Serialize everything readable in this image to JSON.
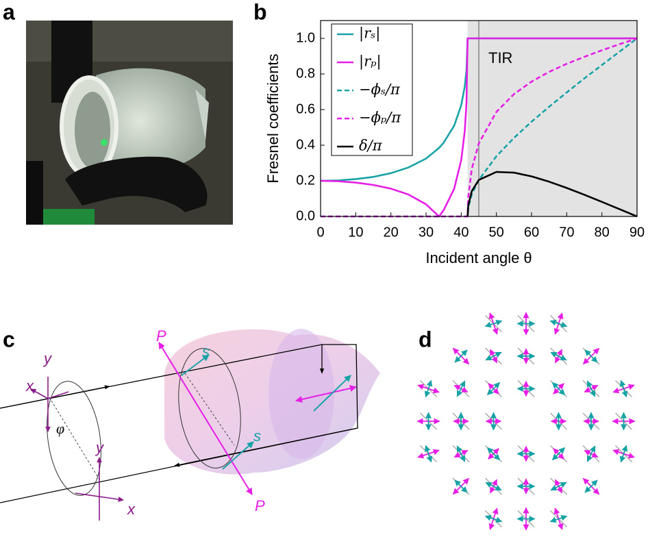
{
  "panel_labels": [
    "a",
    "b",
    "c",
    "d"
  ],
  "chart_data": {
    "type": "line",
    "x_label": "Incident angle θ",
    "y_label": "Fresnel coefficients",
    "annotation": "TIR",
    "shaded_xrange": [
      41.81,
      90
    ],
    "vline": 45,
    "xlim": [
      0,
      90
    ],
    "ylim": [
      0,
      1.1
    ],
    "xticks": [
      0,
      10,
      20,
      30,
      40,
      50,
      60,
      70,
      80,
      90
    ],
    "yticks": [
      {
        "value": 0,
        "label": "0.0"
      },
      0.2,
      0.4,
      0.6,
      0.8,
      {
        "value": 1,
        "label": "1.0"
      }
    ],
    "legend": "upper left",
    "x": [
      0,
      5,
      10,
      15,
      20,
      25,
      30,
      33.7,
      35,
      38,
      40,
      41,
      41.5,
      41.81,
      42,
      43,
      45,
      50,
      55,
      60,
      65,
      70,
      75,
      80,
      85,
      90
    ],
    "series": [
      {
        "name": "|rₛ|",
        "color": "#17a3a6",
        "dashed": false,
        "values": [
          0.2,
          0.202,
          0.21,
          0.222,
          0.243,
          0.275,
          0.325,
          0.385,
          0.414,
          0.51,
          0.625,
          0.729,
          0.821,
          1,
          1,
          1,
          1,
          1,
          1,
          1,
          1,
          1,
          1,
          1,
          1,
          1
        ]
      },
      {
        "name": "|rₚ|",
        "color": "#e61ee6",
        "dashed": false,
        "values": [
          0.2,
          0.198,
          0.19,
          0.177,
          0.156,
          0.123,
          0.068,
          0,
          0.035,
          0.156,
          0.316,
          0.478,
          0.638,
          1,
          1,
          1,
          1,
          1,
          1,
          1,
          1,
          1,
          1,
          1,
          1,
          1
        ]
      },
      {
        "name": "−ϕₛ/π",
        "color": "#17a3a6",
        "dashed": true,
        "values": [
          0,
          0,
          0,
          0,
          0,
          0,
          0,
          0,
          0,
          0,
          0,
          0,
          0,
          0,
          0.049,
          0.124,
          0.205,
          0.338,
          0.441,
          0.532,
          0.616,
          0.696,
          0.775,
          0.85,
          0.925,
          1
        ]
      },
      {
        "name": "−ϕₚ/π",
        "color": "#e61ee6",
        "dashed": true,
        "values": [
          0,
          0,
          0,
          0,
          0,
          0,
          0,
          0,
          0,
          0,
          0,
          0,
          0,
          0,
          0.11,
          0.266,
          0.41,
          0.587,
          0.687,
          0.757,
          0.812,
          0.857,
          0.896,
          0.933,
          0.967,
          1
        ]
      },
      {
        "name": "δ/π",
        "color": "#000000",
        "dashed": false,
        "values": [
          null,
          null,
          null,
          null,
          null,
          null,
          null,
          null,
          null,
          null,
          null,
          null,
          null,
          0,
          0.061,
          0.142,
          0.205,
          0.25,
          0.246,
          0.225,
          0.195,
          0.16,
          0.122,
          0.082,
          0.041,
          0
        ]
      }
    ]
  },
  "diagram_c": {
    "labels": [
      "x",
      "y",
      "φ",
      "y",
      "x",
      "P",
      "s",
      "s",
      "P"
    ]
  }
}
